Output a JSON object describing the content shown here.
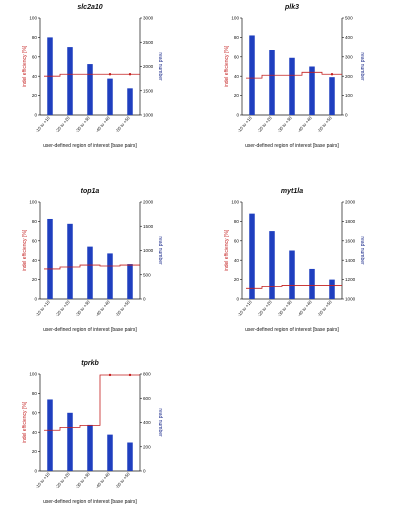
{
  "chart_data": [
    {
      "type": "bar+line",
      "title": "slc2a10",
      "categories": [
        "-10 to +10",
        "-20 to +20",
        "-30 to +30",
        "-40 to +40",
        "-50 to +50"
      ],
      "series": [
        {
          "name": "read number",
          "axis": "right",
          "kind": "bar",
          "values": [
            2600,
            2400,
            2050,
            1750,
            1550
          ]
        },
        {
          "name": "indel efficiency",
          "axis": "left",
          "kind": "line",
          "values": [
            40,
            42,
            42,
            42,
            42
          ]
        }
      ],
      "ylabel_left": "indel efficiency [%]",
      "ylim_left": [
        0,
        100
      ],
      "yticks_left": [
        0,
        20,
        40,
        60,
        80,
        100
      ],
      "ylabel_right": "read number",
      "ylim_right": [
        1000,
        3000
      ],
      "yticks_right": [
        1000,
        1500,
        2000,
        2500,
        3000
      ],
      "xlabel": "user-defined region of interest [base pairs]",
      "grid": false,
      "line_end_marker": true
    },
    {
      "type": "bar+line",
      "title": "plk3",
      "categories": [
        "-10 to +10",
        "-20 to +20",
        "-30 to +30",
        "-40 to +40",
        "-50 to +50"
      ],
      "series": [
        {
          "name": "read number",
          "axis": "right",
          "kind": "bar",
          "values": [
            410,
            335,
            295,
            250,
            195
          ]
        },
        {
          "name": "indel efficiency",
          "axis": "left",
          "kind": "line",
          "values": [
            38,
            41,
            41,
            44,
            42
          ]
        }
      ],
      "ylabel_left": "indel efficiency [%]",
      "ylim_left": [
        0,
        100
      ],
      "yticks_left": [
        0,
        20,
        40,
        60,
        80,
        100
      ],
      "ylabel_right": "read number",
      "ylim_right": [
        0,
        500
      ],
      "yticks_right": [
        0,
        100,
        200,
        300,
        400,
        500
      ],
      "xlabel": "user-defined region of interest [base pairs]",
      "grid": false,
      "line_end_marker": true
    },
    {
      "type": "bar+line",
      "title": "top1a",
      "categories": [
        "-10 to +10",
        "-20 to +20",
        "-30 to +30",
        "-40 to +40",
        "-50 to +50"
      ],
      "series": [
        {
          "name": "read number",
          "axis": "right",
          "kind": "bar",
          "values": [
            1650,
            1550,
            1080,
            940,
            720
          ]
        },
        {
          "name": "indel efficiency",
          "axis": "left",
          "kind": "line",
          "values": [
            31,
            33,
            35,
            34,
            35
          ]
        }
      ],
      "ylabel_left": "indel efficiency [%]",
      "ylim_left": [
        0,
        100
      ],
      "yticks_left": [
        0,
        20,
        40,
        60,
        80,
        100
      ],
      "ylabel_right": "read number",
      "ylim_right": [
        0,
        2000
      ],
      "yticks_right": [
        0,
        500,
        1000,
        1500,
        2000
      ],
      "xlabel": "user-defined region of interest [base pairs]",
      "grid": false,
      "line_end_marker": false
    },
    {
      "type": "bar+line",
      "title": "myt1la",
      "categories": [
        "-10 to +10",
        "-20 to +20",
        "-30 to +30",
        "-40 to +40",
        "-50 to +50"
      ],
      "series": [
        {
          "name": "read number",
          "axis": "right",
          "kind": "bar",
          "values": [
            1880,
            1700,
            1500,
            1310,
            1200
          ]
        },
        {
          "name": "indel efficiency",
          "axis": "left",
          "kind": "line",
          "values": [
            11,
            13,
            14,
            14,
            14
          ]
        }
      ],
      "ylabel_left": "indel efficiency [%]",
      "ylim_left": [
        0,
        100
      ],
      "yticks_left": [
        0,
        20,
        40,
        60,
        80,
        100
      ],
      "ylabel_right": "read number",
      "ylim_right": [
        1000,
        2000
      ],
      "yticks_right": [
        1000,
        1200,
        1400,
        1600,
        1800,
        2000
      ],
      "xlabel": "user-defined region of interest [base pairs]",
      "grid": false,
      "line_end_marker": false
    },
    {
      "type": "bar+line",
      "title": "tprkb",
      "categories": [
        "-10 to +10",
        "-20 to +20",
        "-30 to +30",
        "-40 to +40",
        "-50 to +50"
      ],
      "series": [
        {
          "name": "read number",
          "axis": "right",
          "kind": "bar",
          "values": [
            590,
            480,
            380,
            300,
            235
          ]
        },
        {
          "name": "indel efficiency",
          "axis": "left",
          "kind": "line",
          "values": [
            42,
            45,
            47,
            99,
            99
          ]
        }
      ],
      "ylabel_left": "indel efficiency [%]",
      "ylim_left": [
        0,
        100
      ],
      "yticks_left": [
        0,
        20,
        40,
        60,
        80,
        100
      ],
      "ylabel_right": "read number",
      "ylim_right": [
        0,
        800
      ],
      "yticks_right": [
        0,
        200,
        400,
        600,
        800
      ],
      "xlabel": "user-defined region of interest [base pairs]",
      "grid": false,
      "line_end_marker": true
    }
  ],
  "colors": {
    "bar": "#1f3fbf",
    "line": "#c41e1e",
    "left_axis_label": "#c41e1e",
    "right_axis_label": "#1a2a8a",
    "axis": "#111111"
  }
}
